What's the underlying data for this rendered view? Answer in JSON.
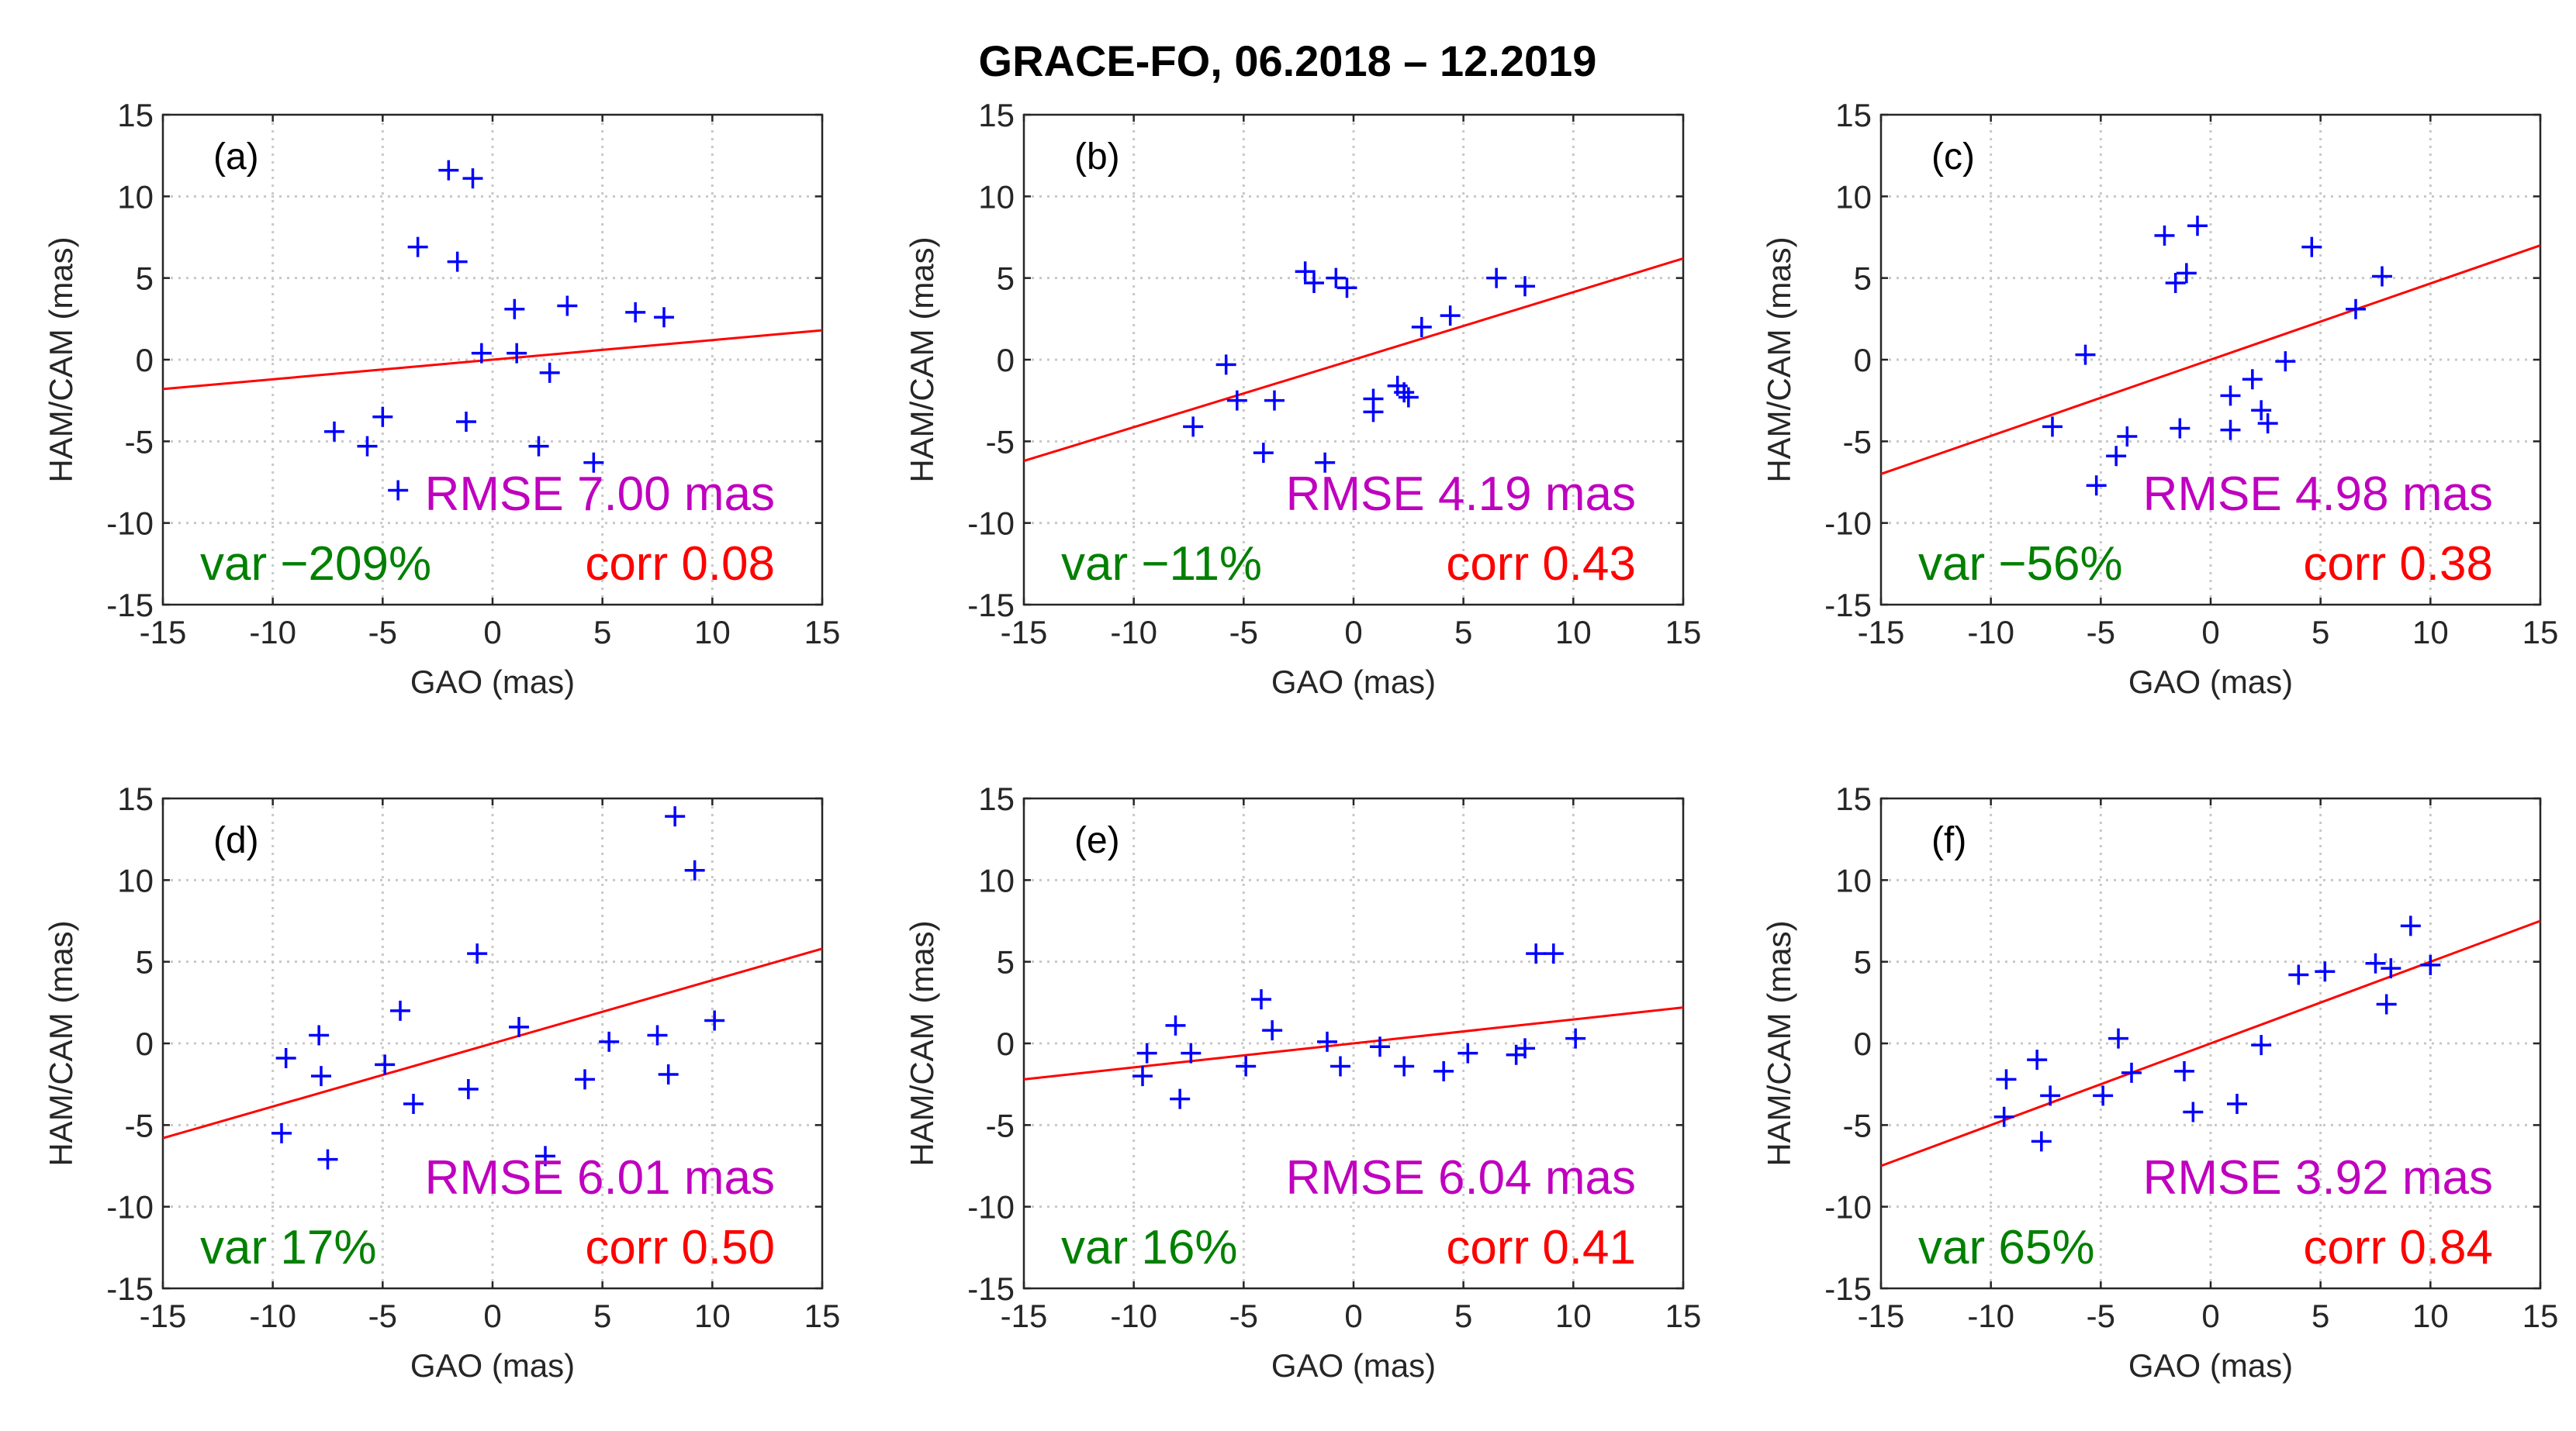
{
  "figure": {
    "title": "GRACE-FO, 06.2018 – 12.2019"
  },
  "colors": {
    "marker": "#0000ff",
    "fit_line": "#ff0000",
    "rmse_text": "#bf00bf",
    "var_text": "#008000",
    "corr_text": "#ff0000",
    "grid": "#c8c8c8",
    "axis": "#262626"
  },
  "chart_data": [
    {
      "type": "scatter",
      "panel": "(a)",
      "xlabel": "GAO (mas)",
      "ylabel": "HAM/CAM (mas)",
      "xlim": [
        -15,
        15
      ],
      "ylim": [
        -15,
        15
      ],
      "ticks": [
        -15,
        -10,
        -5,
        0,
        5,
        10,
        15
      ],
      "grid": true,
      "x": [
        -7.2,
        -5.7,
        -5.0,
        -4.3,
        -3.4,
        -2.0,
        -1.6,
        -1.2,
        -0.9,
        -0.5,
        1.0,
        1.1,
        2.1,
        2.6,
        3.4,
        4.6,
        6.5,
        7.8
      ],
      "y": [
        -4.4,
        -5.3,
        -3.5,
        -8.0,
        6.9,
        11.6,
        6.0,
        -3.8,
        11.1,
        0.4,
        3.1,
        0.4,
        -5.3,
        -0.8,
        3.3,
        -6.3,
        2.9,
        2.6
      ],
      "fit": {
        "x": [
          -15,
          15
        ],
        "y": [
          -1.8,
          1.8
        ]
      },
      "rmse": "RMSE 7.00 mas",
      "var": "var −209%",
      "corr": "corr 0.08"
    },
    {
      "type": "scatter",
      "panel": "(b)",
      "xlabel": "GAO (mas)",
      "ylabel": "HAM/CAM (mas)",
      "xlim": [
        -15,
        15
      ],
      "ylim": [
        -15,
        15
      ],
      "ticks": [
        -15,
        -10,
        -5,
        0,
        5,
        10,
        15
      ],
      "grid": true,
      "x": [
        -7.3,
        -5.8,
        -5.3,
        -4.1,
        -3.6,
        -2.2,
        -1.8,
        -1.3,
        -0.8,
        -0.3,
        0.9,
        0.9,
        2.0,
        2.3,
        2.5,
        3.1,
        4.4,
        6.5,
        7.8
      ],
      "y": [
        -4.1,
        -0.3,
        -2.5,
        -5.7,
        -2.5,
        5.4,
        4.7,
        -6.3,
        5.0,
        4.4,
        -3.2,
        -2.4,
        -1.6,
        -2.0,
        -2.3,
        2.0,
        2.7,
        5.0,
        4.5
      ],
      "fit": {
        "x": [
          -15,
          15
        ],
        "y": [
          -6.2,
          6.2
        ]
      },
      "rmse": "RMSE 4.19 mas",
      "var": "var −11%",
      "corr": "corr 0.43"
    },
    {
      "type": "scatter",
      "panel": "(c)",
      "xlabel": "GAO (mas)",
      "ylabel": "HAM/CAM (mas)",
      "xlim": [
        -15,
        15
      ],
      "ylim": [
        -15,
        15
      ],
      "ticks": [
        -15,
        -10,
        -5,
        0,
        5,
        10,
        15
      ],
      "grid": true,
      "x": [
        -7.2,
        -5.7,
        -5.2,
        -4.3,
        -3.8,
        -2.1,
        -1.6,
        -1.4,
        -1.1,
        -0.6,
        0.9,
        0.9,
        1.9,
        2.3,
        2.6,
        3.4,
        4.6,
        6.6,
        7.8
      ],
      "y": [
        -4.1,
        0.3,
        -7.7,
        -5.9,
        -4.7,
        7.6,
        4.7,
        -4.2,
        5.3,
        8.2,
        -4.3,
        -2.2,
        -1.2,
        -3.1,
        -3.9,
        -0.1,
        6.9,
        3.1,
        5.1
      ],
      "fit": {
        "x": [
          -15,
          15
        ],
        "y": [
          -7.0,
          7.0
        ]
      },
      "rmse": "RMSE 4.98 mas",
      "var": "var −56%",
      "corr": "corr 0.38"
    },
    {
      "type": "scatter",
      "panel": "(d)",
      "xlabel": "GAO (mas)",
      "ylabel": "HAM/CAM (mas)",
      "xlim": [
        -15,
        15
      ],
      "ylim": [
        -15,
        15
      ],
      "ticks": [
        -15,
        -10,
        -5,
        0,
        5,
        10,
        15
      ],
      "grid": true,
      "x": [
        -9.6,
        -9.4,
        -7.9,
        -7.8,
        -7.5,
        -4.9,
        -4.2,
        -3.6,
        -1.1,
        -0.7,
        1.2,
        2.4,
        4.2,
        5.3,
        7.5,
        8.0,
        8.3,
        9.2,
        10.1
      ],
      "y": [
        -5.5,
        -0.9,
        0.5,
        -2.0,
        -7.1,
        -1.3,
        2.0,
        -3.7,
        -2.8,
        5.5,
        1.0,
        -6.9,
        -2.2,
        0.1,
        0.5,
        -1.9,
        13.9,
        10.6,
        1.4
      ],
      "fit": {
        "x": [
          -15,
          15
        ],
        "y": [
          -5.8,
          5.8
        ]
      },
      "rmse": "RMSE 6.01 mas",
      "var": "var 17%",
      "corr": "corr 0.50"
    },
    {
      "type": "scatter",
      "panel": "(e)",
      "xlabel": "GAO (mas)",
      "ylabel": "HAM/CAM (mas)",
      "xlim": [
        -15,
        15
      ],
      "ylim": [
        -15,
        15
      ],
      "ticks": [
        -15,
        -10,
        -5,
        0,
        5,
        10,
        15
      ],
      "grid": true,
      "x": [
        -9.6,
        -9.4,
        -8.1,
        -7.9,
        -7.4,
        -4.9,
        -4.2,
        -3.7,
        -1.2,
        -0.6,
        1.2,
        2.3,
        4.1,
        5.2,
        7.4,
        7.8,
        8.3,
        9.1,
        10.1
      ],
      "y": [
        -2.0,
        -0.6,
        1.1,
        -3.4,
        -0.6,
        -1.4,
        2.7,
        0.8,
        0.1,
        -1.4,
        -0.2,
        -1.4,
        -1.7,
        -0.6,
        -0.7,
        -0.3,
        5.5,
        5.5,
        0.3
      ],
      "fit": {
        "x": [
          -15,
          15
        ],
        "y": [
          -2.2,
          2.2
        ]
      },
      "rmse": "RMSE 6.04 mas",
      "var": "var 16%",
      "corr": "corr 0.41"
    },
    {
      "type": "scatter",
      "panel": "(f)",
      "xlabel": "GAO (mas)",
      "ylabel": "HAM/CAM (mas)",
      "xlim": [
        -15,
        15
      ],
      "ylim": [
        -15,
        15
      ],
      "ticks": [
        -15,
        -10,
        -5,
        0,
        5,
        10,
        15
      ],
      "grid": true,
      "x": [
        -9.4,
        -9.3,
        -7.9,
        -7.7,
        -7.3,
        -4.9,
        -4.2,
        -3.6,
        -1.2,
        -0.8,
        1.2,
        2.3,
        4.0,
        5.2,
        7.5,
        8.0,
        8.2,
        9.1,
        10.0
      ],
      "y": [
        -4.5,
        -2.2,
        -1.0,
        -6.0,
        -3.2,
        -3.2,
        0.3,
        -1.8,
        -1.7,
        -4.2,
        -3.7,
        -0.1,
        4.2,
        4.4,
        4.9,
        2.4,
        4.6,
        7.2,
        4.8
      ],
      "fit": {
        "x": [
          -15,
          15
        ],
        "y": [
          -7.5,
          7.5
        ]
      },
      "rmse": "RMSE 3.92 mas",
      "var": "var 65%",
      "corr": "corr 0.84"
    }
  ]
}
